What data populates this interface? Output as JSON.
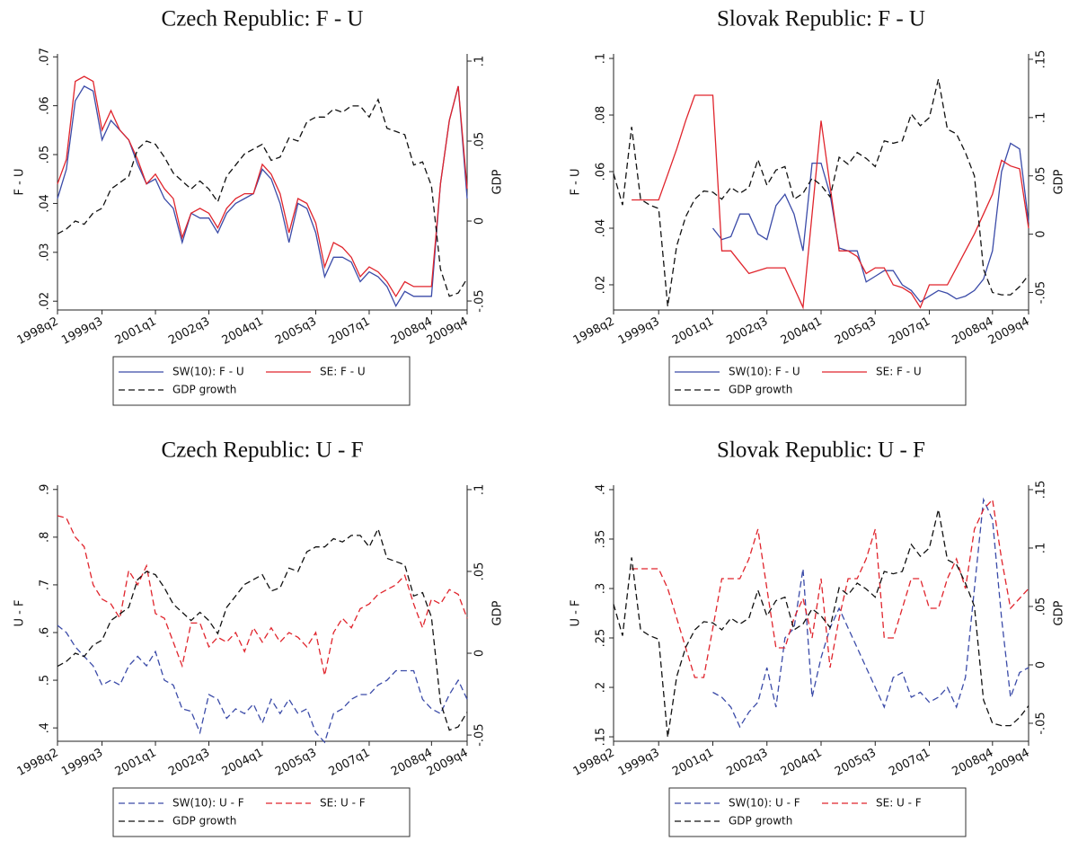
{
  "chart_data": [
    {
      "type": "line",
      "title": "Czech Republic: F - U",
      "y_label": "F - U",
      "y2_label": "GDP",
      "legend": "bottom",
      "categories": [
        "1998q2",
        null,
        null,
        null,
        null,
        "1999q3",
        null,
        null,
        null,
        null,
        null,
        "2001q1",
        null,
        null,
        null,
        null,
        null,
        "2002q3",
        null,
        null,
        null,
        null,
        null,
        "2004q1",
        null,
        null,
        null,
        null,
        null,
        "2005q3",
        null,
        null,
        null,
        null,
        null,
        "2007q1",
        null,
        null,
        null,
        null,
        null,
        null,
        "2008q4",
        null,
        null,
        null,
        "2009q4"
      ],
      "ylim": [
        0.0182,
        0.0706
      ],
      "yticks": [
        {
          "value": 0.02,
          "label": ".02"
        },
        {
          "value": 0.03,
          "label": ".03"
        },
        {
          "value": 0.04,
          "label": ".04"
        },
        {
          "value": 0.05,
          "label": ".05"
        },
        {
          "value": 0.06,
          "label": ".06"
        },
        {
          "value": 0.07,
          "label": ".07"
        }
      ],
      "y2lim": [
        -0.0556,
        0.1045
      ],
      "y2ticks": [
        {
          "value": -0.05,
          "label": "-.05"
        },
        0,
        {
          "value": 0.05,
          "label": ".05"
        },
        {
          "value": 0.1,
          "label": ".1"
        }
      ],
      "series": [
        {
          "name": "SW(10): F - U",
          "color": "#3b4ba8",
          "dashed": false,
          "values": [
            0.041,
            0.047,
            0.061,
            0.064,
            0.063,
            0.053,
            0.057,
            0.055,
            0.053,
            0.048,
            0.044,
            0.045,
            0.041,
            0.039,
            0.032,
            0.038,
            0.037,
            0.037,
            0.034,
            0.038,
            0.04,
            0.041,
            0.042,
            0.047,
            0.045,
            0.04,
            0.032,
            0.04,
            0.039,
            0.034,
            0.025,
            0.029,
            0.029,
            0.028,
            0.024,
            0.026,
            0.025,
            0.023,
            0.019,
            0.022,
            0.021,
            0.021,
            0.021,
            0.044,
            0.057,
            0.064,
            0.041
          ]
        },
        {
          "name": "SE: F - U",
          "color": "#e0242c",
          "dashed": false,
          "values": [
            0.044,
            0.049,
            0.065,
            0.066,
            0.065,
            0.055,
            0.059,
            0.055,
            0.053,
            0.049,
            0.044,
            0.046,
            0.043,
            0.041,
            0.033,
            0.038,
            0.039,
            0.038,
            0.035,
            0.039,
            0.041,
            0.042,
            0.042,
            0.048,
            0.046,
            0.042,
            0.034,
            0.041,
            0.04,
            0.036,
            0.027,
            0.032,
            0.031,
            0.029,
            0.025,
            0.027,
            0.026,
            0.024,
            0.021,
            0.024,
            0.023,
            0.023,
            0.023,
            0.044,
            0.057,
            0.064,
            0.043
          ]
        },
        {
          "name": "GDP growth",
          "color": "#111111",
          "dashed": true,
          "axis": "y2",
          "values": [
            -0.008,
            -0.005,
            0,
            -0.002,
            0.005,
            0.008,
            0.02,
            0.024,
            0.028,
            0.045,
            0.05,
            0.048,
            0.04,
            0.03,
            0.025,
            0.02,
            0.025,
            0.02,
            0.012,
            0.028,
            0.035,
            0.042,
            0.045,
            0.048,
            0.038,
            0.04,
            0.052,
            0.05,
            0.062,
            0.065,
            0.065,
            0.07,
            0.068,
            0.072,
            0.072,
            0.065,
            0.076,
            0.058,
            0.056,
            0.054,
            0.035,
            0.037,
            0.022,
            -0.03,
            -0.047,
            -0.045,
            -0.036
          ]
        }
      ]
    },
    {
      "type": "line",
      "title": "Slovak Republic: F - U",
      "y_label": "F - U",
      "y2_label": "GDP",
      "legend": "bottom",
      "categories": [
        "1998q2",
        null,
        null,
        null,
        null,
        "1999q3",
        null,
        null,
        null,
        null,
        null,
        "2001q1",
        null,
        null,
        null,
        null,
        null,
        "2002q3",
        null,
        null,
        null,
        null,
        null,
        "2004q1",
        null,
        null,
        null,
        null,
        null,
        "2005q3",
        null,
        null,
        null,
        null,
        null,
        "2007q1",
        null,
        null,
        null,
        null,
        null,
        null,
        "2008q4",
        null,
        null,
        null,
        "2009q4"
      ],
      "ylim": [
        0.0111,
        0.1016
      ],
      "yticks": [
        {
          "value": 0.02,
          "label": ".02"
        },
        {
          "value": 0.04,
          "label": ".04"
        },
        {
          "value": 0.06,
          "label": ".06"
        },
        {
          "value": 0.08,
          "label": ".08"
        },
        {
          "value": 0.1,
          "label": ".1"
        }
      ],
      "y2lim": [
        -0.065,
        0.1546
      ],
      "y2ticks": [
        {
          "value": -0.05,
          "label": "-.05"
        },
        0,
        {
          "value": 0.05,
          "label": ".05"
        },
        {
          "value": 0.1,
          "label": ".1"
        },
        {
          "value": 0.15,
          "label": ".15"
        }
      ],
      "series": [
        {
          "name": "SW(10): F - U",
          "color": "#3b4ba8",
          "dashed": false,
          "values": [
            null,
            null,
            null,
            null,
            null,
            null,
            null,
            null,
            null,
            null,
            null,
            0.04,
            0.036,
            0.037,
            0.045,
            0.045,
            0.038,
            0.036,
            0.048,
            0.052,
            0.045,
            0.032,
            0.063,
            0.063,
            0.052,
            0.033,
            0.032,
            0.032,
            0.021,
            0.023,
            0.025,
            0.025,
            0.02,
            0.018,
            0.014,
            0.016,
            0.018,
            0.017,
            0.015,
            0.016,
            0.018,
            0.022,
            0.032,
            0.06,
            0.07,
            0.068,
            0.042
          ]
        },
        {
          "name": "SE: F - U",
          "color": "#e0242c",
          "dashed": false,
          "values": [
            null,
            null,
            0.05,
            0.05,
            0.05,
            0.05,
            0.059,
            0.068,
            0.078,
            0.087,
            0.087,
            0.087,
            0.032,
            0.032,
            0.028,
            0.024,
            0.025,
            0.026,
            0.026,
            0.026,
            0.019,
            0.012,
            0.045,
            0.078,
            0.055,
            0.032,
            0.032,
            0.03,
            0.024,
            0.026,
            0.026,
            0.02,
            0.019,
            0.017,
            0.012,
            0.02,
            0.02,
            0.02,
            0.026,
            0.032,
            0.038,
            0.045,
            0.052,
            0.064,
            0.062,
            0.061,
            0.04
          ]
        },
        {
          "name": "GDP growth",
          "color": "#111111",
          "dashed": true,
          "axis": "y2",
          "values": [
            0.052,
            0.025,
            0.092,
            0.03,
            0.025,
            0.022,
            -0.062,
            -0.01,
            0.015,
            0.03,
            0.037,
            0.036,
            0.03,
            0.04,
            0.035,
            0.04,
            0.064,
            0.042,
            0.055,
            0.058,
            0.03,
            0.035,
            0.048,
            0.042,
            0.032,
            0.066,
            0.06,
            0.07,
            0.065,
            0.058,
            0.08,
            0.078,
            0.08,
            0.103,
            0.093,
            0.1,
            0.133,
            0.09,
            0.086,
            0.07,
            0.05,
            -0.03,
            -0.05,
            -0.052,
            -0.052,
            -0.045,
            -0.035
          ]
        }
      ]
    },
    {
      "type": "line",
      "title": "Czech Republic: U - F",
      "y_label": "U - F",
      "y2_label": "GDP",
      "legend": "bottom",
      "categories": [
        "1998q2",
        null,
        null,
        null,
        null,
        "1999q3",
        null,
        null,
        null,
        null,
        null,
        "2001q1",
        null,
        null,
        null,
        null,
        null,
        "2002q3",
        null,
        null,
        null,
        null,
        null,
        "2004q1",
        null,
        null,
        null,
        null,
        null,
        "2005q3",
        null,
        null,
        null,
        null,
        null,
        "2007q1",
        null,
        null,
        null,
        null,
        null,
        null,
        "2008q4",
        null,
        null,
        null,
        "2009q4"
      ],
      "ylim": [
        0.372,
        0.909
      ],
      "yticks": [
        {
          "value": 0.4,
          "label": ".4"
        },
        {
          "value": 0.5,
          "label": ".5"
        },
        {
          "value": 0.6,
          "label": ".6"
        },
        {
          "value": 0.7,
          "label": ".7"
        },
        {
          "value": 0.8,
          "label": ".8"
        },
        {
          "value": 0.9,
          "label": ".9"
        }
      ],
      "y2lim": [
        -0.0538,
        0.1027
      ],
      "y2ticks": [
        {
          "value": -0.05,
          "label": "-.05"
        },
        0,
        {
          "value": 0.05,
          "label": ".05"
        },
        {
          "value": 0.1,
          "label": ".1"
        }
      ],
      "series": [
        {
          "name": "SW(10): U - F",
          "color": "#3b4ba8",
          "dashed": true,
          "values": [
            0.615,
            0.6,
            0.57,
            0.55,
            0.53,
            0.49,
            0.5,
            0.49,
            0.53,
            0.55,
            0.53,
            0.56,
            0.5,
            0.49,
            0.44,
            0.435,
            0.39,
            0.47,
            0.46,
            0.42,
            0.44,
            0.43,
            0.45,
            0.41,
            0.46,
            0.43,
            0.46,
            0.43,
            0.44,
            0.39,
            0.37,
            0.43,
            0.44,
            0.46,
            0.47,
            0.47,
            0.49,
            0.5,
            0.52,
            0.52,
            0.52,
            0.46,
            0.44,
            0.43,
            0.47,
            0.5,
            0.46
          ]
        },
        {
          "name": "SE: U - F",
          "color": "#e0242c",
          "dashed": true,
          "values": [
            0.845,
            0.84,
            0.8,
            0.78,
            0.7,
            0.67,
            0.66,
            0.63,
            0.73,
            0.7,
            0.74,
            0.64,
            0.63,
            0.58,
            0.53,
            0.62,
            0.62,
            0.57,
            0.59,
            0.58,
            0.6,
            0.56,
            0.61,
            0.58,
            0.61,
            0.58,
            0.6,
            0.59,
            0.57,
            0.6,
            0.51,
            0.6,
            0.63,
            0.61,
            0.65,
            0.66,
            0.68,
            0.69,
            0.7,
            0.72,
            0.66,
            0.61,
            0.67,
            0.66,
            0.69,
            0.68,
            0.63
          ]
        },
        {
          "name": "GDP growth",
          "color": "#111111",
          "dashed": true,
          "axis": "y2",
          "values": [
            -0.008,
            -0.005,
            0,
            -0.002,
            0.005,
            0.008,
            0.02,
            0.024,
            0.028,
            0.045,
            0.05,
            0.048,
            0.04,
            0.03,
            0.025,
            0.02,
            0.025,
            0.02,
            0.012,
            0.028,
            0.035,
            0.042,
            0.045,
            0.048,
            0.038,
            0.04,
            0.052,
            0.05,
            0.062,
            0.065,
            0.065,
            0.07,
            0.068,
            0.072,
            0.072,
            0.065,
            0.076,
            0.058,
            0.056,
            0.054,
            0.035,
            0.037,
            0.022,
            -0.03,
            -0.047,
            -0.045,
            -0.036
          ]
        }
      ]
    },
    {
      "type": "line",
      "title": "Slovak Republic: U - F",
      "y_label": "U - F",
      "y2_label": "GDP",
      "legend": "bottom",
      "categories": [
        "1998q2",
        null,
        null,
        null,
        null,
        "1999q3",
        null,
        null,
        null,
        null,
        null,
        "2001q1",
        null,
        null,
        null,
        null,
        null,
        "2002q3",
        null,
        null,
        null,
        null,
        null,
        "2004q1",
        null,
        null,
        null,
        null,
        null,
        "2005q3",
        null,
        null,
        null,
        null,
        null,
        "2007q1",
        null,
        null,
        null,
        null,
        null,
        null,
        "2008q4",
        null,
        null,
        null,
        "2009q4"
      ],
      "ylim": [
        0.1455,
        0.4045
      ],
      "yticks": [
        {
          "value": 0.15,
          "label": ".15"
        },
        {
          "value": 0.2,
          "label": ".2"
        },
        {
          "value": 0.25,
          "label": ".25"
        },
        {
          "value": 0.3,
          "label": ".3"
        },
        {
          "value": 0.35,
          "label": ".35"
        },
        {
          "value": 0.4,
          "label": ".4"
        }
      ],
      "y2lim": [
        -0.0654,
        0.1538
      ],
      "y2ticks": [
        {
          "value": -0.05,
          "label": "-.05"
        },
        0,
        {
          "value": 0.05,
          "label": ".05"
        },
        {
          "value": 0.1,
          "label": ".1"
        },
        {
          "value": 0.15,
          "label": ".15"
        }
      ],
      "series": [
        {
          "name": "SW(10): U - F",
          "color": "#3b4ba8",
          "dashed": true,
          "values": [
            null,
            null,
            null,
            null,
            null,
            null,
            null,
            null,
            null,
            null,
            null,
            0.195,
            0.19,
            0.18,
            0.16,
            0.175,
            0.185,
            0.22,
            0.18,
            0.25,
            0.26,
            0.32,
            0.19,
            0.23,
            0.26,
            0.28,
            0.26,
            0.24,
            0.22,
            0.2,
            0.18,
            0.21,
            0.215,
            0.19,
            0.195,
            0.185,
            0.19,
            0.2,
            0.18,
            0.21,
            0.3,
            0.39,
            0.37,
            0.27,
            0.19,
            0.215,
            0.22
          ]
        },
        {
          "name": "SE: U - F",
          "color": "#e0242c",
          "dashed": true,
          "values": [
            null,
            null,
            0.32,
            0.32,
            0.32,
            0.32,
            0.3,
            0.27,
            0.24,
            0.21,
            0.21,
            0.26,
            0.31,
            0.31,
            0.31,
            0.33,
            0.36,
            0.3,
            0.24,
            0.24,
            0.27,
            0.29,
            0.25,
            0.31,
            0.22,
            0.27,
            0.31,
            0.31,
            0.33,
            0.36,
            0.25,
            0.25,
            0.28,
            0.31,
            0.31,
            0.28,
            0.28,
            0.31,
            0.33,
            0.3,
            0.36,
            0.38,
            0.39,
            0.33,
            0.28,
            0.29,
            0.3
          ]
        },
        {
          "name": "GDP growth",
          "color": "#111111",
          "dashed": true,
          "axis": "y2",
          "values": [
            0.052,
            0.025,
            0.092,
            0.03,
            0.025,
            0.022,
            -0.062,
            -0.01,
            0.015,
            0.03,
            0.037,
            0.036,
            0.03,
            0.04,
            0.035,
            0.04,
            0.064,
            0.042,
            0.055,
            0.058,
            0.03,
            0.035,
            0.048,
            0.042,
            0.032,
            0.066,
            0.06,
            0.07,
            0.065,
            0.058,
            0.08,
            0.078,
            0.08,
            0.103,
            0.093,
            0.1,
            0.133,
            0.09,
            0.086,
            0.07,
            0.05,
            -0.03,
            -0.05,
            -0.052,
            -0.052,
            -0.045,
            -0.035
          ]
        }
      ]
    }
  ]
}
